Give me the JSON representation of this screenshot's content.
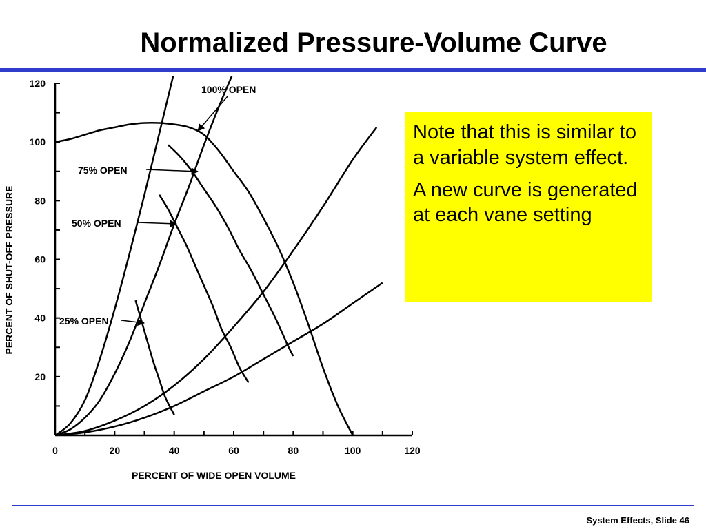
{
  "slide": {
    "title": "Normalized Pressure-Volume Curve",
    "footer": "System Effects, Slide 46",
    "note_paragraphs": [
      "Note that this is similar to a variable system effect.",
      "A new curve is generated at each vane setting"
    ],
    "colors": {
      "rule": "#2f3ccc",
      "note_background": "#ffff00"
    }
  },
  "chart_data": {
    "type": "line",
    "xlabel": "PERCENT OF WIDE OPEN VOLUME",
    "ylabel": "PERCENT OF SHUT-OFF PRESSURE",
    "xlim": [
      0,
      120
    ],
    "ylim": [
      0,
      120
    ],
    "x_ticks": [
      0,
      20,
      40,
      60,
      80,
      100,
      120
    ],
    "y_ticks": [
      20,
      40,
      60,
      80,
      100,
      120
    ],
    "grid": false,
    "series": [
      {
        "name": "100% OPEN",
        "x": [
          0,
          5,
          10,
          15,
          20,
          25,
          30,
          35,
          40,
          45,
          50,
          55,
          60,
          65,
          70,
          75,
          80,
          85,
          90,
          95,
          100
        ],
        "y": [
          100,
          101,
          102.5,
          104,
          105,
          106,
          106.5,
          106.5,
          106,
          105,
          102.5,
          97,
          90,
          83,
          74,
          64,
          52,
          38,
          23,
          10,
          0
        ]
      },
      {
        "name": "75% OPEN",
        "x": [
          38,
          42,
          46,
          50,
          54,
          58,
          62,
          66,
          70,
          74,
          78,
          80
        ],
        "y": [
          99,
          95,
          90,
          84,
          78,
          71,
          63,
          56,
          48,
          40,
          31,
          27
        ]
      },
      {
        "name": "50% OPEN",
        "x": [
          35,
          38,
          41,
          44,
          47,
          50,
          53,
          56,
          59,
          62,
          65
        ],
        "y": [
          82,
          77,
          71,
          65,
          58,
          51,
          44,
          36,
          30,
          23,
          18
        ]
      },
      {
        "name": "25% OPEN",
        "x": [
          27,
          29,
          31,
          33,
          35,
          37,
          40
        ],
        "y": [
          46,
          39,
          32,
          25,
          19,
          13,
          7
        ]
      },
      {
        "name": "",
        "x": [
          0,
          5,
          10,
          15,
          20,
          25,
          30,
          35,
          40,
          45,
          50,
          55,
          60
        ],
        "y": [
          0,
          2,
          6,
          12,
          21,
          32,
          45,
          58,
          72,
          85,
          99,
          112,
          124
        ]
      },
      {
        "name": "",
        "x": [
          0,
          10,
          20,
          30,
          40,
          50,
          60,
          70,
          80,
          90,
          100,
          108
        ],
        "y": [
          0,
          1.5,
          5,
          10,
          17,
          26,
          37,
          49,
          63,
          78,
          94,
          105
        ]
      },
      {
        "name": "",
        "x": [
          0,
          10,
          20,
          30,
          40,
          50,
          60,
          70,
          80,
          90,
          100,
          110
        ],
        "y": [
          0,
          1,
          3,
          6,
          10,
          15,
          20,
          26,
          32,
          38,
          45,
          52
        ]
      },
      {
        "name": "",
        "x": [
          0,
          5,
          10,
          15,
          20,
          25,
          30,
          35,
          40,
          44
        ],
        "y": [
          0,
          4,
          12,
          26,
          43,
          62,
          82,
          103,
          124,
          141
        ]
      }
    ],
    "annotations": [
      {
        "text": "100% OPEN",
        "points_to_series": "100% OPEN"
      },
      {
        "text": "75% OPEN",
        "points_to_series": "75% OPEN"
      },
      {
        "text": "50% OPEN",
        "points_to_series": "50% OPEN"
      },
      {
        "text": "25% OPEN",
        "points_to_series": "25% OPEN"
      }
    ]
  }
}
